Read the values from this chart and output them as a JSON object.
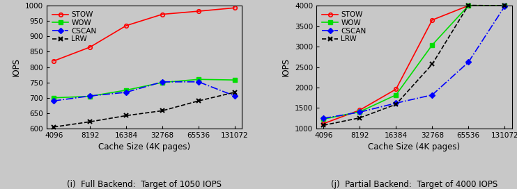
{
  "x_values": [
    4096,
    8192,
    16384,
    32768,
    65536,
    131072
  ],
  "x_labels": [
    "4096",
    "8192",
    "16384",
    "32768",
    "65536",
    "131072"
  ],
  "left": {
    "STOW": [
      820,
      865,
      935,
      972,
      982,
      993
    ],
    "WOW": [
      700,
      705,
      725,
      750,
      760,
      758
    ],
    "CSCAN": [
      690,
      706,
      718,
      752,
      752,
      706
    ],
    "LRW": [
      605,
      622,
      642,
      658,
      690,
      718
    ],
    "ylabel": "IOPS",
    "xlabel": "Cache Size (4K pages)",
    "caption": "(i)  Full Backend:  Target of 1050 IOPS",
    "ylim": [
      600,
      1000
    ],
    "yticks": [
      600,
      650,
      700,
      750,
      800,
      850,
      900,
      950,
      1000
    ]
  },
  "right": {
    "STOW": [
      1120,
      1450,
      1960,
      3650,
      4000,
      4000
    ],
    "WOW": [
      1230,
      1410,
      1820,
      3040,
      4000,
      4000
    ],
    "CSCAN": [
      1250,
      1400,
      1620,
      1820,
      2620,
      3980
    ],
    "LRW": [
      1080,
      1260,
      1590,
      2570,
      4010,
      4000
    ],
    "ylabel": "IOPS",
    "xlabel": "Cache Size (4K pages)",
    "caption": "(j)  Partial Backend:  Target of 4000 IOPS",
    "ylim": [
      1000,
      4000
    ],
    "yticks": [
      1000,
      1500,
      2000,
      2500,
      3000,
      3500,
      4000
    ]
  },
  "colors": {
    "STOW": "#ff0000",
    "WOW": "#00dd00",
    "CSCAN": "#0000ff",
    "LRW": "#000000"
  },
  "bg_color": "#c8c8c8",
  "legend_order": [
    "STOW",
    "WOW",
    "CSCAN",
    "LRW"
  ]
}
